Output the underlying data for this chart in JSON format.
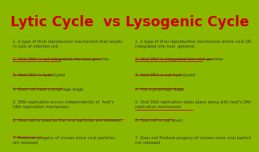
{
  "title": "Lytic Cycle  vs Lysogenic Cycle",
  "title_color": "#cc0000",
  "title_bg": "#ffffff",
  "outer_bg": "#8ab800",
  "panel_bg": "#f8f8ee",
  "text_color": "#333333",
  "underline_color": "#cc0000",
  "lytic_points": [
    "1. A type of Viral reproduction mechanism that results\nin lysis of infected cell.",
    "2. Viral DNA is not integrated into host genome.",
    "3. Host DNA is hydrolyzed",
    "4. Does not have a prophage stage",
    "5. DNA replication occurs independently of  host's\nDNA replication mechanism",
    "6. Host cell is lysed as the viral particles are released",
    "7. Produces progeny of viruses since viral particles\nare released"
  ],
  "lysogenic_points": [
    "1. A type of Viral reproduction mechanism where viral DNA is\nintegrated into host  genome.",
    "2. Viral DNA is integrated into host genome",
    "3. Host DNA is not hydrolyzed",
    "4. Has a prophage stage",
    "5. Viral DNA replication takes place along with host's DNA\nreplication mechanism",
    "6. Host cell is not lysed.",
    "7. Does not Produce progeny of viruses since viral particles are\nnot released"
  ],
  "border_width": 5,
  "title_fontsize": 12.5,
  "content_fontsize": 3.6
}
